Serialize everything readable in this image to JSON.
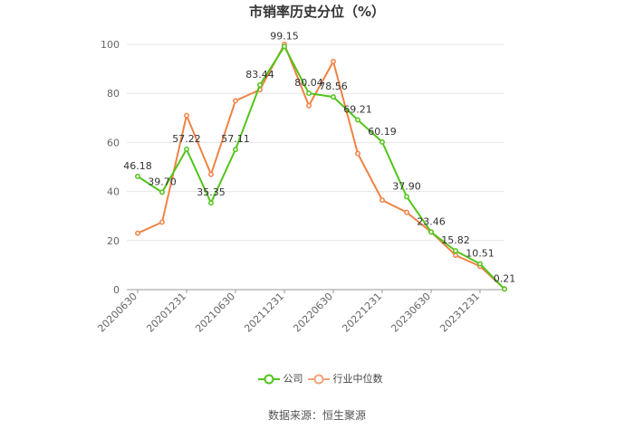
{
  "title": "市销率历史分位（%）",
  "source": "数据来源：恒生聚源",
  "colors": {
    "company": "#52c41a",
    "industry": "#f08246",
    "grid": "#e6e6e6",
    "axis": "#999999",
    "label": "#333333"
  },
  "chart_data": {
    "type": "line",
    "title": "市销率历史分位（%）",
    "xlabel": "",
    "ylabel": "",
    "ylim": [
      0,
      100
    ],
    "yticks": [
      0,
      20,
      40,
      60,
      80,
      100
    ],
    "x": [
      "20200630",
      "20200930",
      "20201231",
      "20210331",
      "20210630",
      "20210930",
      "20211231",
      "20220331",
      "20220630",
      "20220930",
      "20221231",
      "20230331",
      "20230630",
      "20230930",
      "20231231",
      "20240331"
    ],
    "xtick_labels": [
      "20200630",
      "20201231",
      "20210630",
      "20211231",
      "20220630",
      "20221231",
      "20230630",
      "20231231"
    ],
    "grid": true,
    "legend_position": "bottom",
    "series": [
      {
        "name": "公司",
        "color": "#52c41a",
        "values": [
          46.18,
          39.7,
          57.22,
          35.35,
          57.11,
          83.44,
          99.15,
          80.04,
          78.56,
          69.21,
          60.19,
          37.9,
          23.46,
          15.82,
          10.51,
          0.21
        ],
        "labels": [
          "46.18",
          "39.70",
          "57.22",
          "35.35",
          "57.11",
          "83.44",
          "99.15",
          "80.04",
          "78.56",
          "69.21",
          "60.19",
          "37.90",
          "23.46",
          "15.82",
          "10.51",
          "0.21"
        ]
      },
      {
        "name": "行业中位数",
        "color": "#f08246",
        "values": [
          23,
          27.5,
          71,
          47,
          77,
          81.5,
          100,
          75,
          93,
          55.5,
          36.5,
          31.5,
          23.5,
          14,
          9.5,
          0.3
        ]
      }
    ]
  }
}
